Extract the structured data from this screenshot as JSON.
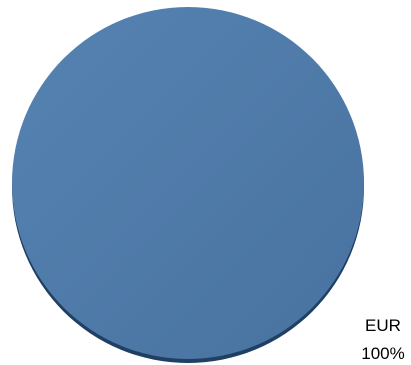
{
  "chart_data": {
    "type": "pie",
    "categories": [
      "EUR"
    ],
    "values": [
      100
    ],
    "data_labels": [
      {
        "category": "EUR",
        "percent": "100%"
      }
    ],
    "colors": {
      "slice": "#4F7CAC",
      "slice_edge": "#1F3F63"
    },
    "legend": "none",
    "grid": false
  }
}
